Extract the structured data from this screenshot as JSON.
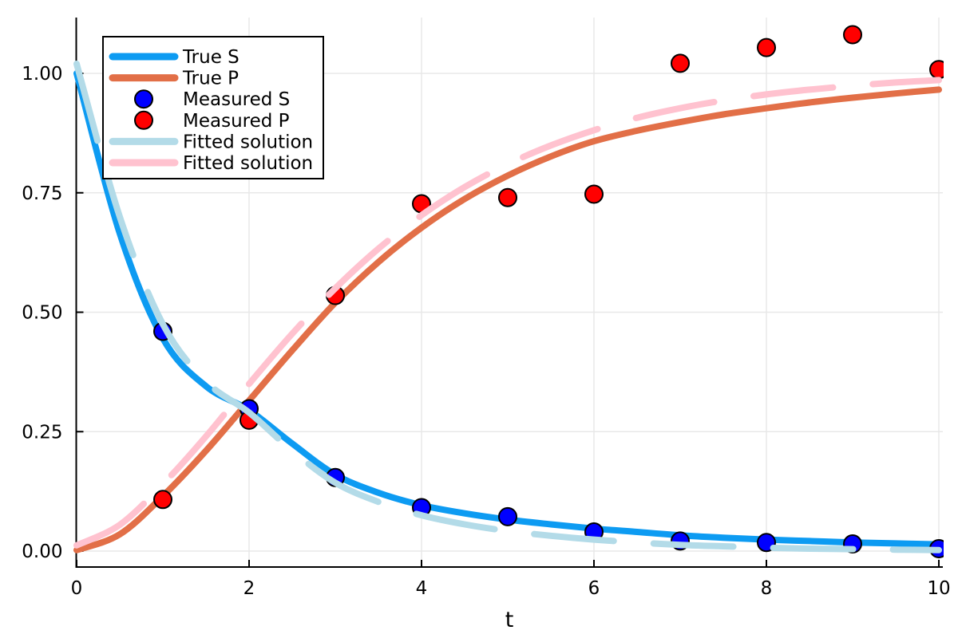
{
  "chart_data": {
    "type": "line+scatter",
    "title": "",
    "xlabel": "t",
    "ylabel": "",
    "xlim": [
      0,
      10
    ],
    "ylim": [
      -0.033,
      1.117
    ],
    "grid": true,
    "legend_position": "top-left",
    "x_ticks": [
      {
        "value": 0,
        "label": "0"
      },
      {
        "value": 2,
        "label": "2"
      },
      {
        "value": 4,
        "label": "4"
      },
      {
        "value": 6,
        "label": "6"
      },
      {
        "value": 8,
        "label": "8"
      },
      {
        "value": 10,
        "label": "10"
      }
    ],
    "y_ticks": [
      {
        "value": 0.0,
        "label": "0.00"
      },
      {
        "value": 0.25,
        "label": "0.25"
      },
      {
        "value": 0.5,
        "label": "0.50"
      },
      {
        "value": 0.75,
        "label": "0.75"
      },
      {
        "value": 1.0,
        "label": "1.00"
      }
    ],
    "series": [
      {
        "name": "True S",
        "kind": "line",
        "color": "#0d9bf2",
        "width": 8,
        "t": [
          0,
          0.5,
          1,
          1.5,
          2,
          2.5,
          3,
          3.5,
          4,
          4.5,
          5,
          5.5,
          6,
          6.5,
          7,
          7.5,
          8,
          8.5,
          9,
          9.5,
          10
        ],
        "y": [
          1.0,
          0.665,
          0.445,
          0.345,
          0.295,
          0.225,
          0.16,
          0.122,
          0.096,
          0.079,
          0.066,
          0.056,
          0.047,
          0.04,
          0.033,
          0.028,
          0.024,
          0.021,
          0.018,
          0.016,
          0.014
        ]
      },
      {
        "name": "True P",
        "kind": "line",
        "color": "#e26f47",
        "width": 8,
        "t": [
          0,
          0.5,
          1,
          1.5,
          2,
          2.5,
          3,
          3.5,
          4,
          4.5,
          5,
          5.5,
          6,
          6.5,
          7,
          7.5,
          8,
          8.5,
          9,
          9.5,
          10
        ],
        "y": [
          0.002,
          0.035,
          0.115,
          0.21,
          0.315,
          0.42,
          0.52,
          0.605,
          0.677,
          0.737,
          0.786,
          0.826,
          0.858,
          0.88,
          0.898,
          0.914,
          0.927,
          0.939,
          0.949,
          0.958,
          0.966
        ]
      },
      {
        "name": "Measured S",
        "kind": "scatter",
        "color": "#0000ff",
        "marker_radius": 11,
        "t": [
          1,
          2,
          3,
          4,
          5,
          6,
          7,
          8,
          9,
          10
        ],
        "y": [
          0.46,
          0.298,
          0.154,
          0.091,
          0.072,
          0.04,
          0.021,
          0.018,
          0.015,
          0.005
        ]
      },
      {
        "name": "Measured P",
        "kind": "scatter",
        "color": "#ff0000",
        "marker_radius": 11,
        "t": [
          1,
          2,
          3,
          4,
          5,
          6,
          7,
          8,
          9,
          10
        ],
        "y": [
          0.108,
          0.274,
          0.535,
          0.727,
          0.74,
          0.747,
          1.021,
          1.054,
          1.081,
          1.008
        ]
      },
      {
        "name": "Fitted solution",
        "kind": "dashed-line",
        "color": "#b3dbe8",
        "width": 8,
        "dash": [
          100,
          50
        ],
        "t": [
          0,
          0.5,
          1,
          1.5,
          2,
          2.5,
          3,
          3.5,
          4,
          4.5,
          5,
          5.5,
          6,
          6.5,
          7,
          7.5,
          8,
          8.5,
          9,
          9.5,
          10
        ],
        "y": [
          1.02,
          0.7,
          0.475,
          0.355,
          0.29,
          0.21,
          0.143,
          0.103,
          0.075,
          0.056,
          0.042,
          0.032,
          0.024,
          0.018,
          0.013,
          0.01,
          0.007,
          0.005,
          0.004,
          0.003,
          0.002
        ]
      },
      {
        "name": "Fitted solution",
        "kind": "dashed-line",
        "color": "#ffc2cf",
        "width": 8,
        "dash": [
          100,
          50
        ],
        "t": [
          0,
          0.5,
          1,
          1.5,
          2,
          2.5,
          3,
          3.5,
          4,
          4.5,
          5,
          5.5,
          6,
          6.5,
          7,
          7.5,
          8,
          8.5,
          9,
          9.5,
          10
        ],
        "y": [
          0.012,
          0.055,
          0.14,
          0.24,
          0.35,
          0.455,
          0.55,
          0.633,
          0.703,
          0.762,
          0.81,
          0.849,
          0.881,
          0.907,
          0.927,
          0.943,
          0.956,
          0.966,
          0.974,
          0.981,
          0.986
        ]
      }
    ]
  },
  "legend": {
    "entries": [
      {
        "label": "True S",
        "swatch": "line",
        "color": "#0d9bf2"
      },
      {
        "label": "True P",
        "swatch": "line",
        "color": "#e26f47"
      },
      {
        "label": "Measured S",
        "swatch": "circle",
        "color": "#0000ff"
      },
      {
        "label": "Measured P",
        "swatch": "circle",
        "color": "#ff0000"
      },
      {
        "label": "Fitted solution",
        "swatch": "line",
        "color": "#b3dbe8"
      },
      {
        "label": "Fitted solution",
        "swatch": "line",
        "color": "#ffc2cf"
      }
    ],
    "border_color": "#000000",
    "background": "#ffffff"
  },
  "style": {
    "grid_color": "#e8e8e8",
    "spine_color": "#000000",
    "marker_stroke": "#000000",
    "tick_font_size": 23,
    "legend_font_size": 23,
    "xlabel_font_size": 27
  }
}
